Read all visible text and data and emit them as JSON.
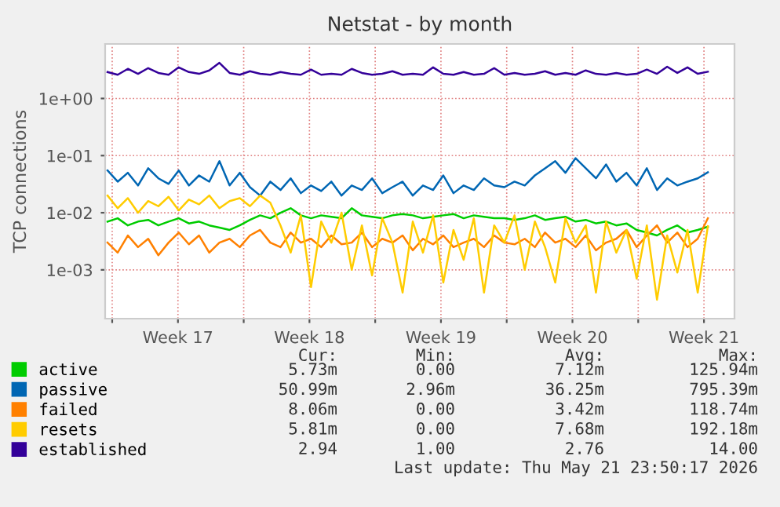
{
  "chart_data": {
    "type": "line",
    "title": "Netstat - by month",
    "ylabel": "TCP connections",
    "log": "y",
    "grid": true,
    "legend": "bottom",
    "marker": "none",
    "line_style": "solid",
    "ylim": [
      0.00014,
      9
    ],
    "yticks": [
      {
        "value": 0.001,
        "label": "1e-03"
      },
      {
        "value": 0.01,
        "label": "1e-02"
      },
      {
        "value": 0.1,
        "label": "1e-01"
      },
      {
        "value": 1,
        "label": "1e+00"
      }
    ],
    "xlim": [
      "2026-04-19T15:00",
      "2026-05-23T03:00"
    ],
    "xticks": [
      {
        "value": "2026-04-20",
        "label": null
      },
      {
        "value": "2026-04-23T12:00",
        "label": "Week 17"
      },
      {
        "value": "2026-04-27",
        "label": null
      },
      {
        "value": "2026-04-30T12:00",
        "label": "Week 18"
      },
      {
        "value": "2026-05-04",
        "label": null
      },
      {
        "value": "2026-05-07T12:00",
        "label": "Week 19"
      },
      {
        "value": "2026-05-11",
        "label": null
      },
      {
        "value": "2026-05-14T12:00",
        "label": "Week 20"
      },
      {
        "value": "2026-05-18",
        "label": null
      },
      {
        "value": "2026-05-21T12:00",
        "label": "Week 21"
      }
    ],
    "x": [
      "2026-04-19T18:00",
      "2026-04-20T07:00",
      "2026-04-20T20:00",
      "2026-04-21T09:00",
      "2026-04-21T22:00",
      "2026-04-22T11:00",
      "2026-04-23T00:00",
      "2026-04-23T13:00",
      "2026-04-24T02:00",
      "2026-04-24T15:00",
      "2026-04-25T04:00",
      "2026-04-25T17:00",
      "2026-04-26T06:00",
      "2026-04-26T19:00",
      "2026-04-27T08:00",
      "2026-04-27T21:00",
      "2026-04-28T10:00",
      "2026-04-28T23:00",
      "2026-04-29T12:00",
      "2026-04-30T01:00",
      "2026-04-30T14:00",
      "2026-05-01T03:00",
      "2026-05-01T16:00",
      "2026-05-02T05:00",
      "2026-05-02T18:00",
      "2026-05-03T07:00",
      "2026-05-03T20:00",
      "2026-05-04T09:00",
      "2026-05-04T22:00",
      "2026-05-05T11:00",
      "2026-05-06T00:00",
      "2026-05-06T13:00",
      "2026-05-07T02:00",
      "2026-05-07T15:00",
      "2026-05-08T04:00",
      "2026-05-08T17:00",
      "2026-05-09T06:00",
      "2026-05-09T19:00",
      "2026-05-10T08:00",
      "2026-05-10T21:00",
      "2026-05-11T10:00",
      "2026-05-11T23:00",
      "2026-05-12T12:00",
      "2026-05-13T01:00",
      "2026-05-13T14:00",
      "2026-05-14T03:00",
      "2026-05-14T16:00",
      "2026-05-15T05:00",
      "2026-05-15T18:00",
      "2026-05-16T07:00",
      "2026-05-16T20:00",
      "2026-05-17T09:00",
      "2026-05-17T22:00",
      "2026-05-18T11:00",
      "2026-05-19T00:00",
      "2026-05-19T13:00",
      "2026-05-20T02:00",
      "2026-05-20T15:00",
      "2026-05-21T04:00",
      "2026-05-21T17:00"
    ],
    "series": [
      {
        "name": "active",
        "color": "#00cc00",
        "values": [
          0.007,
          0.008,
          0.006,
          0.007,
          0.0075,
          0.006,
          0.007,
          0.008,
          0.0065,
          0.007,
          0.006,
          0.0055,
          0.005,
          0.006,
          0.0075,
          0.009,
          0.008,
          0.01,
          0.012,
          0.009,
          0.008,
          0.009,
          0.0085,
          0.008,
          0.012,
          0.009,
          0.0085,
          0.008,
          0.009,
          0.0095,
          0.009,
          0.008,
          0.0085,
          0.009,
          0.0095,
          0.008,
          0.009,
          0.0085,
          0.008,
          0.008,
          0.0075,
          0.008,
          0.009,
          0.0075,
          0.008,
          0.0085,
          0.007,
          0.0075,
          0.0065,
          0.007,
          0.006,
          0.0065,
          0.005,
          0.0045,
          0.004,
          0.005,
          0.006,
          0.0045,
          0.005,
          0.0057
        ]
      },
      {
        "name": "passive",
        "color": "#0066b3",
        "values": [
          0.055,
          0.035,
          0.05,
          0.03,
          0.06,
          0.04,
          0.032,
          0.055,
          0.03,
          0.045,
          0.035,
          0.08,
          0.03,
          0.05,
          0.028,
          0.02,
          0.035,
          0.025,
          0.04,
          0.022,
          0.03,
          0.024,
          0.035,
          0.02,
          0.03,
          0.025,
          0.04,
          0.022,
          0.028,
          0.035,
          0.02,
          0.03,
          0.025,
          0.045,
          0.022,
          0.03,
          0.025,
          0.04,
          0.03,
          0.028,
          0.035,
          0.03,
          0.045,
          0.06,
          0.08,
          0.05,
          0.09,
          0.06,
          0.04,
          0.07,
          0.035,
          0.05,
          0.03,
          0.06,
          0.025,
          0.04,
          0.03,
          0.035,
          0.04,
          0.051
        ]
      },
      {
        "name": "failed",
        "color": "#ff8000",
        "values": [
          0.003,
          0.002,
          0.004,
          0.0025,
          0.0035,
          0.0018,
          0.003,
          0.0045,
          0.0028,
          0.004,
          0.002,
          0.003,
          0.0035,
          0.0025,
          0.004,
          0.005,
          0.003,
          0.0025,
          0.0045,
          0.003,
          0.0035,
          0.0025,
          0.004,
          0.0028,
          0.003,
          0.0045,
          0.0025,
          0.0035,
          0.003,
          0.004,
          0.0022,
          0.0035,
          0.0028,
          0.004,
          0.0025,
          0.003,
          0.0035,
          0.0025,
          0.004,
          0.003,
          0.0028,
          0.0035,
          0.0025,
          0.0045,
          0.003,
          0.0035,
          0.0025,
          0.004,
          0.0022,
          0.003,
          0.0035,
          0.005,
          0.0025,
          0.004,
          0.006,
          0.003,
          0.0045,
          0.0025,
          0.0035,
          0.008
        ]
      },
      {
        "name": "resets",
        "color": "#ffcc00",
        "values": [
          0.02,
          0.012,
          0.018,
          0.01,
          0.016,
          0.013,
          0.019,
          0.011,
          0.017,
          0.014,
          0.02,
          0.012,
          0.016,
          0.018,
          0.013,
          0.02,
          0.015,
          0.006,
          0.002,
          0.009,
          0.0005,
          0.007,
          0.003,
          0.01,
          0.001,
          0.006,
          0.0008,
          0.008,
          0.003,
          0.0004,
          0.007,
          0.002,
          0.009,
          0.0006,
          0.005,
          0.0015,
          0.008,
          0.0004,
          0.006,
          0.003,
          0.009,
          0.001,
          0.007,
          0.0025,
          0.0006,
          0.008,
          0.003,
          0.006,
          0.0004,
          0.007,
          0.002,
          0.005,
          0.0007,
          0.006,
          0.0003,
          0.004,
          0.0009,
          0.005,
          0.0004,
          0.0058
        ]
      },
      {
        "name": "established",
        "color": "#330099",
        "values": [
          2.9,
          2.6,
          3.3,
          2.7,
          3.4,
          2.8,
          2.6,
          3.5,
          2.9,
          2.7,
          3.1,
          4.2,
          2.8,
          2.6,
          3.0,
          2.7,
          2.6,
          2.9,
          2.7,
          2.6,
          3.2,
          2.6,
          2.7,
          2.6,
          3.3,
          2.8,
          2.6,
          2.7,
          3.0,
          2.6,
          2.7,
          2.6,
          3.5,
          2.7,
          2.6,
          2.9,
          2.6,
          2.7,
          3.4,
          2.6,
          2.8,
          2.6,
          2.7,
          3.0,
          2.6,
          2.8,
          2.6,
          3.1,
          2.7,
          2.6,
          2.8,
          2.6,
          2.7,
          3.2,
          2.7,
          3.6,
          2.8,
          3.5,
          2.7,
          2.94
        ]
      }
    ],
    "annotations": [
      "Cur:",
      "Min:",
      "Avg:",
      "Max:",
      "5.73m",
      "0.00",
      "7.12m",
      "125.94m",
      "50.99m",
      "2.96m",
      "36.25m",
      "795.39m",
      "8.06m",
      "0.00",
      "3.42m",
      "118.74m",
      "5.81m",
      "0.00",
      "7.68m",
      "192.18m",
      "2.94",
      "1.00",
      "2.76",
      "14.00",
      "Last update: Thu May 21 23:50:17 2026"
    ]
  }
}
